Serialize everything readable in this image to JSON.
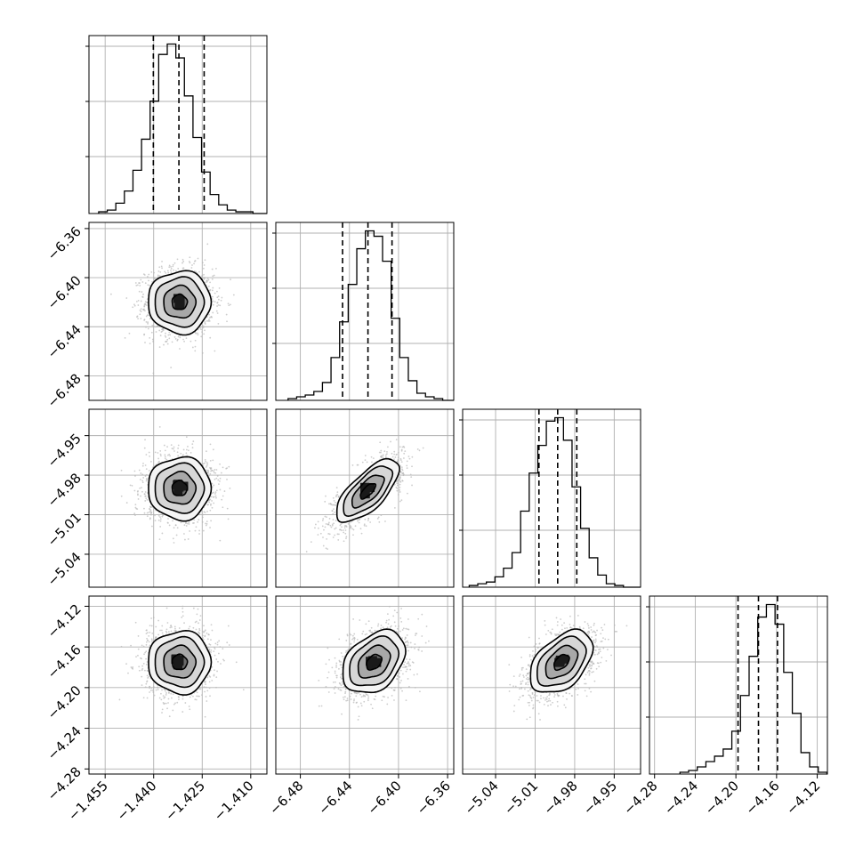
{
  "chart_data": {
    "type": "corner",
    "title": "",
    "grid": true,
    "parameters": [
      {
        "name": "",
        "range": [
          -1.46,
          -1.405
        ],
        "ticks": [
          -1.455,
          -1.44,
          -1.425,
          -1.41
        ],
        "tick_labels": [
          "−1.455",
          "−1.440",
          "−1.425",
          "−1.410"
        ],
        "quantiles": [
          -1.4401,
          -1.4322,
          -1.4244
        ],
        "histogram": {
          "edges_start": -1.457,
          "edge_step": 0.00265,
          "counts": [
            1,
            2,
            6,
            13,
            25,
            43,
            65,
            92,
            98,
            90,
            68,
            44,
            24,
            11,
            5,
            2,
            1,
            1,
            0,
            0
          ]
        },
        "peak": -1.4335
      },
      {
        "name": "",
        "range": [
          -6.5,
          -6.355
        ],
        "ticks": [
          -6.48,
          -6.44,
          -6.4,
          -6.36
        ],
        "tick_labels": [
          "−6.48",
          "−6.44",
          "−6.40",
          "−6.36"
        ],
        "quantiles": [
          -6.4456,
          -6.4249,
          -6.4053
        ],
        "histogram": {
          "edges_start": -6.49,
          "edge_step": 0.007,
          "counts": [
            1,
            2,
            3,
            5,
            10,
            24,
            44,
            65,
            85,
            95,
            92,
            78,
            46,
            24,
            11,
            4,
            2,
            1,
            0,
            0
          ]
        },
        "peak": -6.42
      },
      {
        "name": "",
        "range": [
          -5.065,
          -4.93
        ],
        "ticks": [
          -5.04,
          -5.01,
          -4.98,
          -4.95
        ],
        "tick_labels": [
          "−5.04",
          "−5.01",
          "−4.98",
          "−4.95"
        ],
        "quantiles": [
          -5.0071,
          -4.9929,
          -4.9784
        ],
        "histogram": {
          "edges_start": -5.06,
          "edge_step": 0.0065,
          "counts": [
            1,
            2,
            3,
            6,
            11,
            20,
            44,
            66,
            82,
            96,
            98,
            85,
            58,
            34,
            17,
            7,
            2,
            1,
            0,
            0
          ]
        },
        "peak": -4.985
      },
      {
        "name": "",
        "range": [
          -4.285,
          -4.11
        ],
        "ticks": [
          -4.28,
          -4.24,
          -4.2,
          -4.16,
          -4.12
        ],
        "tick_labels": [
          "−4.28",
          "−4.24",
          "−4.20",
          "−4.16",
          "−4.12"
        ],
        "quantiles": [
          -4.1979,
          -4.1778,
          -4.1591
        ],
        "histogram": {
          "edges_start": -4.255,
          "edge_step": 0.0085,
          "counts": [
            1,
            2,
            4,
            7,
            10,
            14,
            24,
            44,
            66,
            88,
            95,
            84,
            57,
            34,
            12,
            4,
            1,
            0,
            0
          ]
        },
        "peak": -4.178
      }
    ],
    "pairs": [
      {
        "x": 0,
        "y": 1,
        "center": [
          -1.432,
          -6.42
        ],
        "correlation": 0.0
      },
      {
        "x": 0,
        "y": 2,
        "center": [
          -1.432,
          -4.99
        ],
        "correlation": 0.0
      },
      {
        "x": 1,
        "y": 2,
        "center": [
          -6.425,
          -4.992
        ],
        "correlation": 0.7
      },
      {
        "x": 0,
        "y": 3,
        "center": [
          -1.432,
          -4.175
        ],
        "correlation": 0.0
      },
      {
        "x": 1,
        "y": 3,
        "center": [
          -6.42,
          -4.175
        ],
        "correlation": 0.35
      },
      {
        "x": 2,
        "y": 3,
        "center": [
          -4.99,
          -4.175
        ],
        "correlation": 0.45
      }
    ],
    "contour_levels_sigma": [
      0.5,
      1.0,
      1.5,
      2.0
    ]
  }
}
